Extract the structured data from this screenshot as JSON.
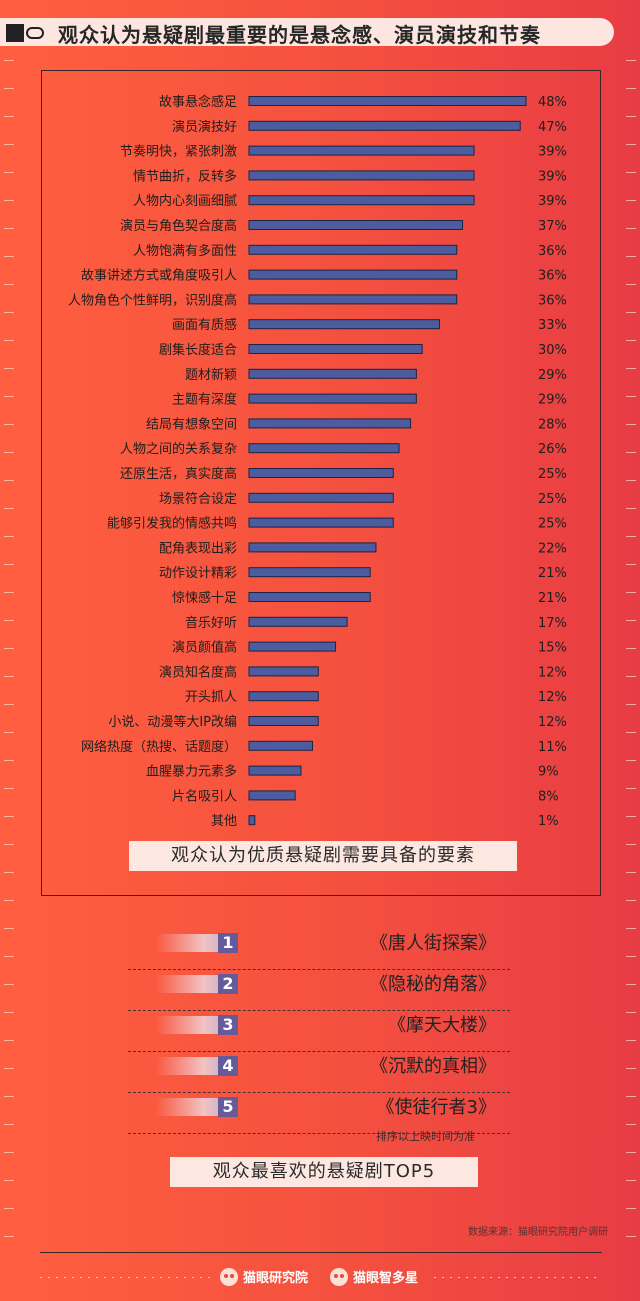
{
  "title": "观众认为悬疑剧最重要的是悬念感、演员演技和节奏",
  "chart_caption": "观众认为优质悬疑剧需要具备的要素",
  "chart_data": {
    "type": "bar",
    "orientation": "horizontal",
    "categories": [
      "故事悬念感足",
      "演员演技好",
      "节奏明快，紧张刺激",
      "情节曲折，反转多",
      "人物内心刻画细腻",
      "演员与角色契合度高",
      "人物饱满有多面性",
      "故事讲述方式或角度吸引人",
      "人物角色个性鲜明，识别度高",
      "画面有质感",
      "剧集长度适合",
      "题材新颖",
      "主题有深度",
      "结局有想象空间",
      "人物之间的关系复杂",
      "还原生活，真实度高",
      "场景符合设定",
      "能够引发我的情感共鸣",
      "配角表现出彩",
      "动作设计精彩",
      "惊悚感十足",
      "音乐好听",
      "演员颜值高",
      "演员知名度高",
      "开头抓人",
      "小说、动漫等大IP改编",
      "网络热度（热搜、话题度）",
      "血腥暴力元素多",
      "片名吸引人",
      "其他"
    ],
    "values": [
      48,
      47,
      39,
      39,
      39,
      37,
      36,
      36,
      36,
      33,
      30,
      29,
      29,
      28,
      26,
      25,
      25,
      25,
      22,
      21,
      21,
      17,
      15,
      12,
      12,
      12,
      11,
      9,
      8,
      1
    ],
    "value_labels": [
      "48%",
      "47%",
      "39%",
      "39%",
      "39%",
      "37%",
      "36%",
      "36%",
      "36%",
      "33%",
      "30%",
      "29%",
      "29%",
      "28%",
      "26%",
      "25%",
      "25%",
      "25%",
      "22%",
      "21%",
      "21%",
      "17%",
      "15%",
      "12%",
      "12%",
      "12%",
      "11%",
      "9%",
      "8%",
      "1%"
    ],
    "unit": "%",
    "xlim": [
      0,
      48
    ],
    "grid": false,
    "bar_color": "#4b5d9f"
  },
  "top5": {
    "items": [
      {
        "rank": "1",
        "title": "《唐人街探案》"
      },
      {
        "rank": "2",
        "title": "《隐秘的角落》"
      },
      {
        "rank": "3",
        "title": "《摩天大楼》"
      },
      {
        "rank": "4",
        "title": "《沉默的真相》"
      },
      {
        "rank": "5",
        "title": "《使徒行者3》"
      }
    ],
    "note": "排序以上映时间为准",
    "caption": "观众最喜欢的悬疑剧TOP5"
  },
  "source": "数据来源：猫眼研究院用户调研",
  "footer": {
    "brand1": "猫眼研究院",
    "brand2": "猫眼智多星"
  },
  "colors": {
    "background": "#f4503f",
    "rank_badge": "#655a9a",
    "caption_bg": "#fce7e1"
  }
}
